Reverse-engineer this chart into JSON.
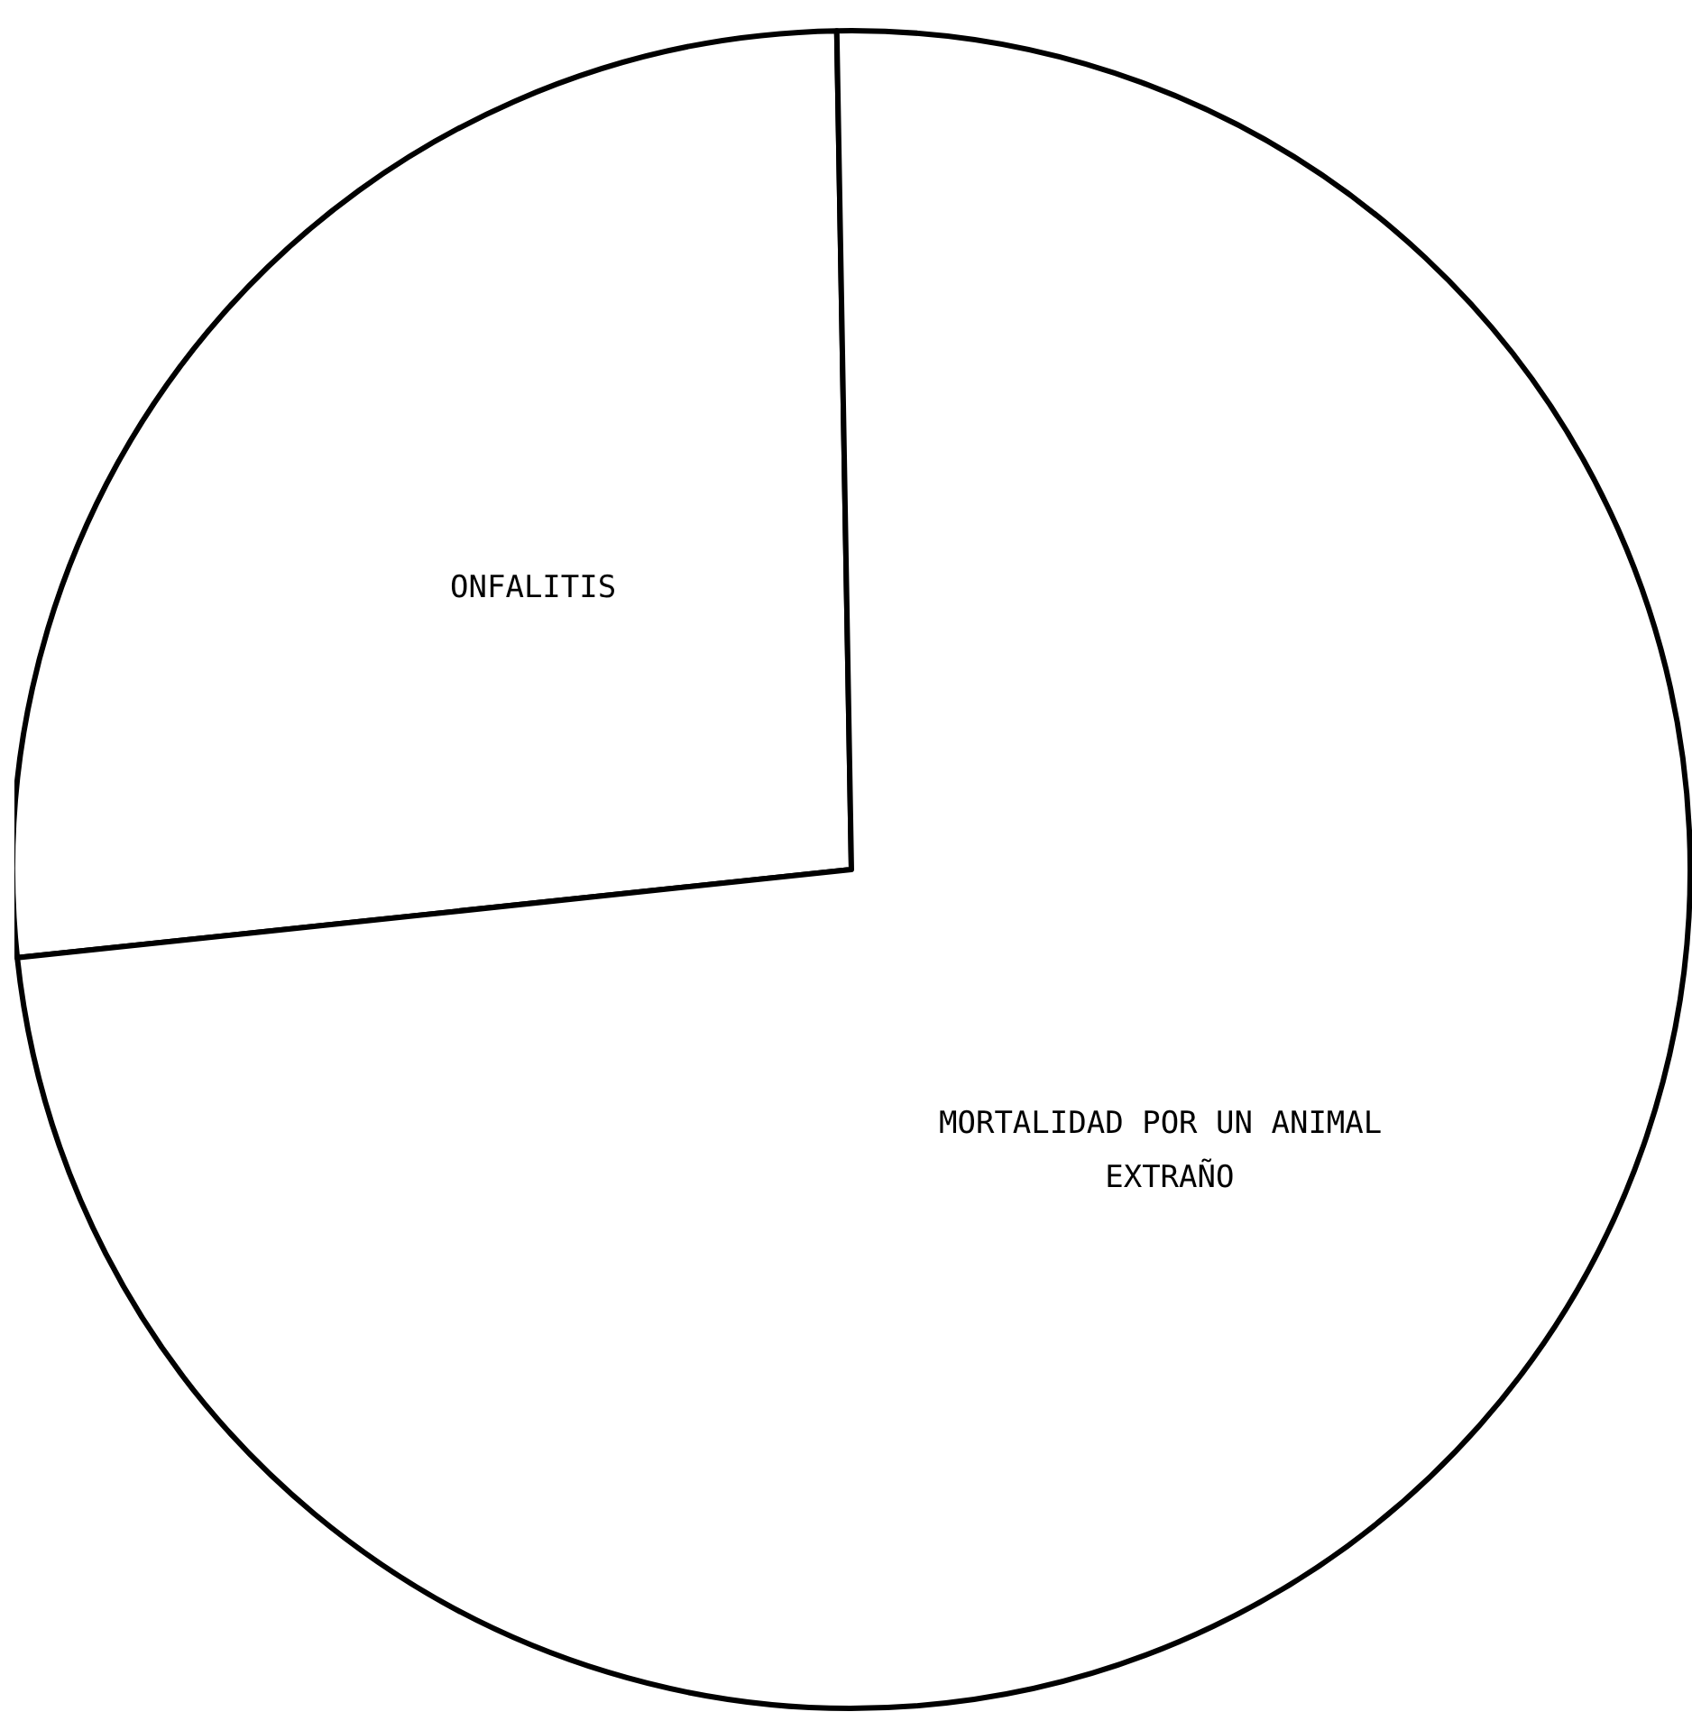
{
  "chart_data": {
    "type": "pie",
    "categories": [
      "ONFALITIS",
      "MORTALIDAD POR UN ANIMAL EXTRAÑO"
    ],
    "values": [
      26.4,
      73.6
    ],
    "colors": [
      "#ffffff",
      "#ffffff"
    ],
    "legend": false
  }
}
